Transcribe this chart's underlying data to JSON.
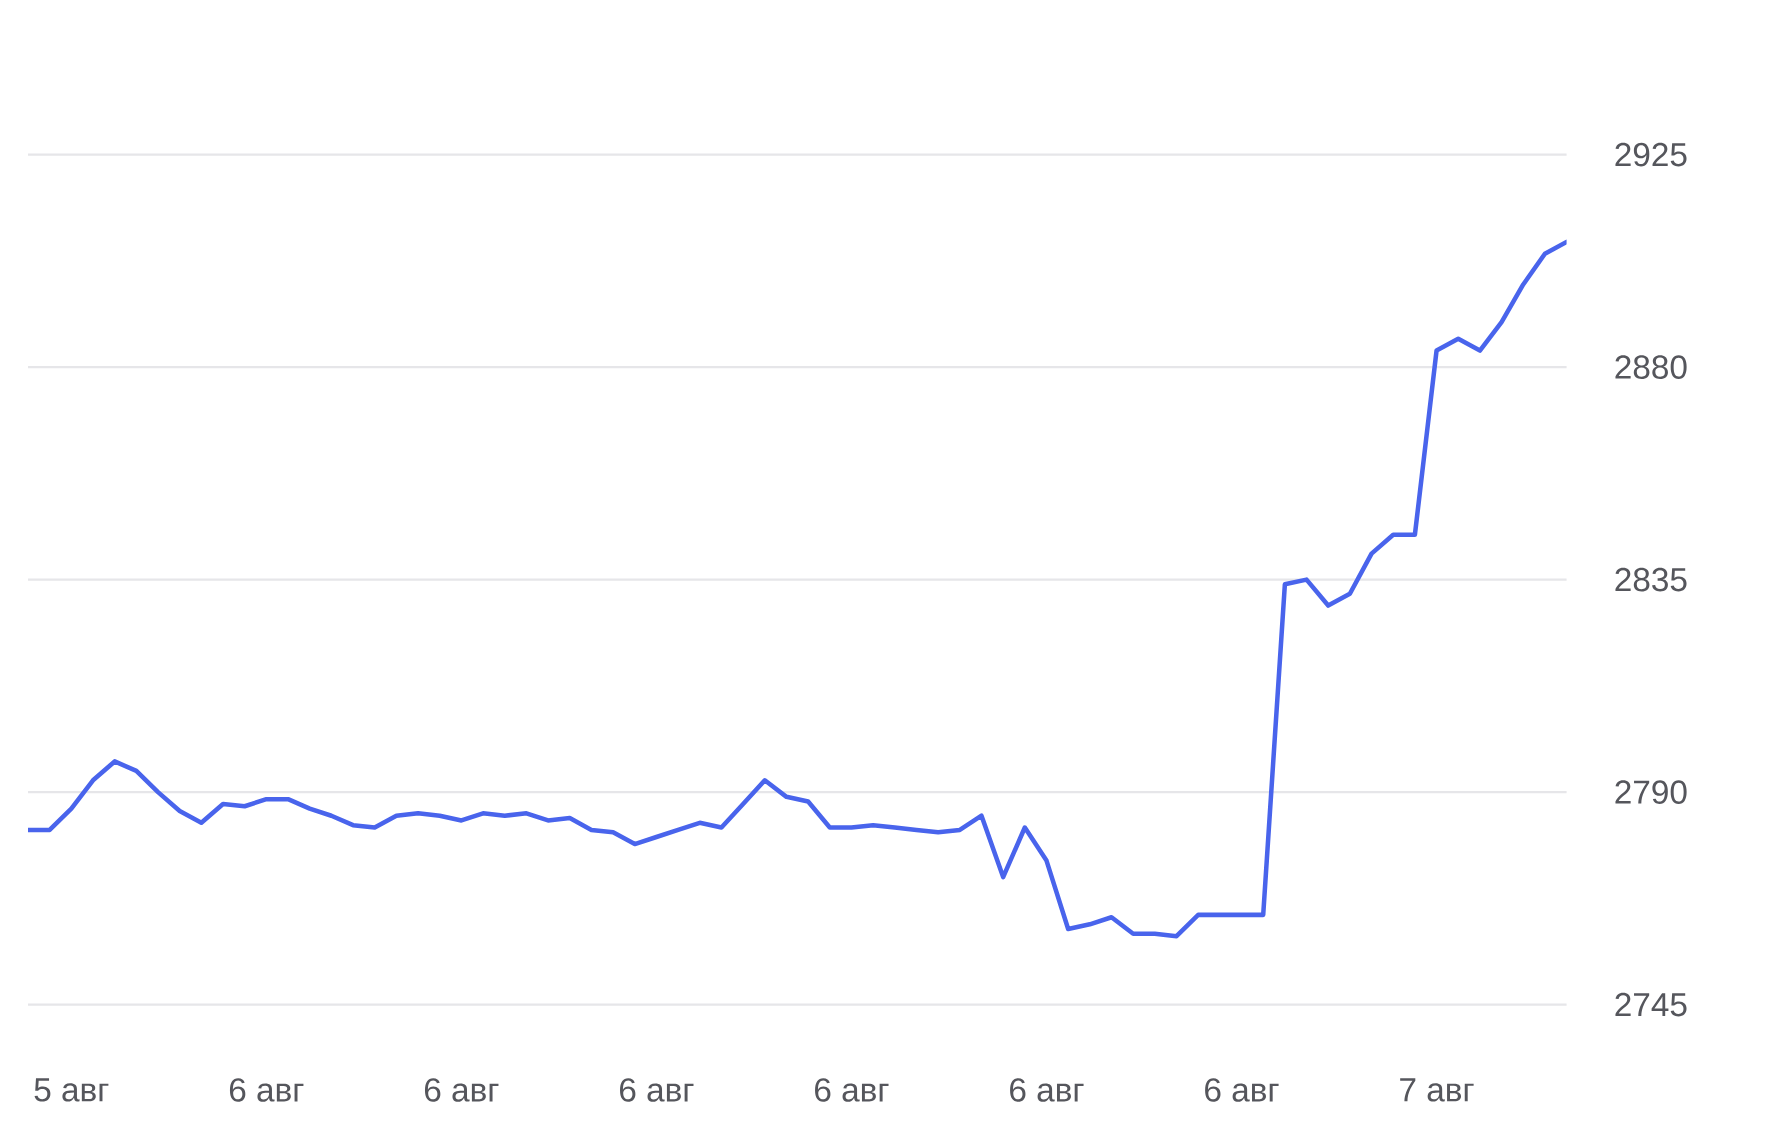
{
  "chart_data": {
    "type": "line",
    "color": "#4964ec",
    "grid": "y",
    "marker": "none",
    "line_style": "solid",
    "categories": [
      null,
      null,
      "5 авг",
      null,
      null,
      null,
      null,
      null,
      null,
      null,
      null,
      "6 авг",
      null,
      null,
      null,
      null,
      null,
      null,
      null,
      null,
      "6 авг",
      null,
      null,
      null,
      null,
      null,
      null,
      null,
      null,
      "6 авг",
      null,
      null,
      null,
      null,
      null,
      null,
      null,
      null,
      "6 авг",
      null,
      null,
      null,
      null,
      null,
      null,
      null,
      null,
      "6 авг",
      null,
      null,
      null,
      null,
      null,
      null,
      null,
      null,
      "6 авг",
      null,
      null,
      null,
      null,
      null,
      null,
      null,
      null,
      "7 авг",
      null,
      null,
      null,
      null,
      null,
      null
    ],
    "values": [
      2782,
      2782,
      2786.5,
      2792.5,
      2796.5,
      2794.5,
      2790,
      2786,
      2783.5,
      2787.5,
      2787,
      2788.5,
      2788.5,
      2786.5,
      2785,
      2783,
      2782.5,
      2785,
      2785.5,
      2785,
      2784,
      2785.5,
      2785,
      2785.5,
      2784,
      2784.5,
      2782,
      2781.5,
      2779,
      2780.5,
      2782,
      2783.5,
      2782.5,
      2787.5,
      2792.5,
      2789,
      2788,
      2782.5,
      2782.5,
      2783,
      2782.5,
      2782,
      2781.5,
      2782,
      2785,
      2772,
      2782.5,
      2775.5,
      2761,
      2762,
      2763.5,
      2760,
      2760,
      2759.5,
      2764,
      2764,
      2764,
      2764,
      2834,
      2835,
      2829.5,
      2832,
      2840.5,
      2844.5,
      2844.5,
      2883.5,
      2886,
      2883.5,
      2889.5,
      2897.5,
      2904,
      2906.5
    ],
    "ylim": [
      2745,
      2925
    ],
    "yticks": [
      2745,
      2790,
      2835,
      2880,
      2925
    ]
  }
}
